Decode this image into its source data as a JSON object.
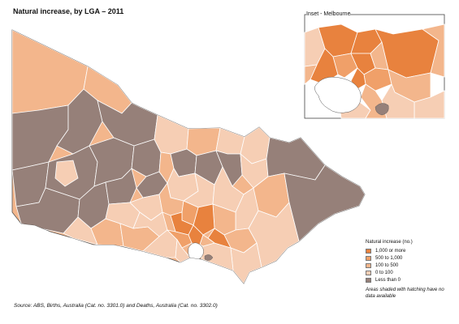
{
  "title": "Natural increase, by LGA – 2011",
  "inset_title": "Inset - Melbourne",
  "legend": {
    "title": "Natural increase (no.)",
    "items": [
      {
        "label": "1,000 or more",
        "color": "#e8823e"
      },
      {
        "label": "500 to 1,000",
        "color": "#f0a069"
      },
      {
        "label": "100 to    500",
        "color": "#f3b68c"
      },
      {
        "label": "0 to    100",
        "color": "#f6ceb4"
      },
      {
        "label": "Less than 0",
        "color": "#968079"
      }
    ],
    "note": "Areas shaded with hatching have no data available"
  },
  "source": "Source:  ABS, Births, Australia (Cat. no. 3301.0) and Deaths, Australia (Cat. no. 3302.0)",
  "colors": {
    "border": "#ffffff",
    "water": "#ffffff"
  }
}
